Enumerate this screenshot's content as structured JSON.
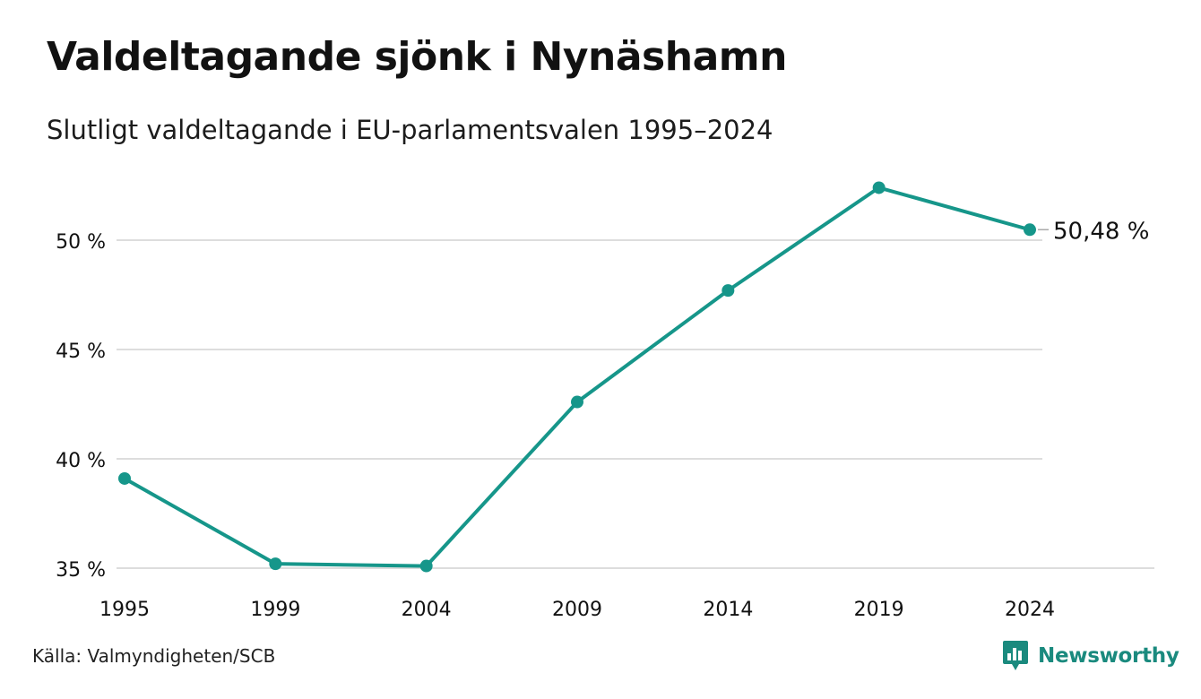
{
  "header": {
    "title": "Valdeltagande sjönk i Nynäshamn",
    "subtitle": "Slutligt valdeltagande i EU-parlamentsvalen 1995–2024"
  },
  "footer": {
    "source": "Källa: Valmyndigheten/SCB",
    "brand": "Newsworthy",
    "brand_icon": "newsworthy-logo-icon"
  },
  "colors": {
    "line": "#16968a",
    "grid": "#dddddd",
    "text": "#111111",
    "brand": "#1a8a7e"
  },
  "chart_data": {
    "type": "line",
    "x": [
      "1995",
      "1999",
      "2004",
      "2009",
      "2014",
      "2019",
      "2024"
    ],
    "series": [
      {
        "values": [
          39.1,
          35.2,
          35.1,
          42.6,
          47.7,
          52.4,
          50.48
        ]
      }
    ],
    "yticks": [
      35,
      40,
      45,
      50
    ],
    "ytick_labels": [
      "35 %",
      "40 %",
      "45 %",
      "50 %"
    ],
    "ylim": [
      35,
      52.4
    ],
    "grid": true,
    "end_label": "50,48 %"
  }
}
